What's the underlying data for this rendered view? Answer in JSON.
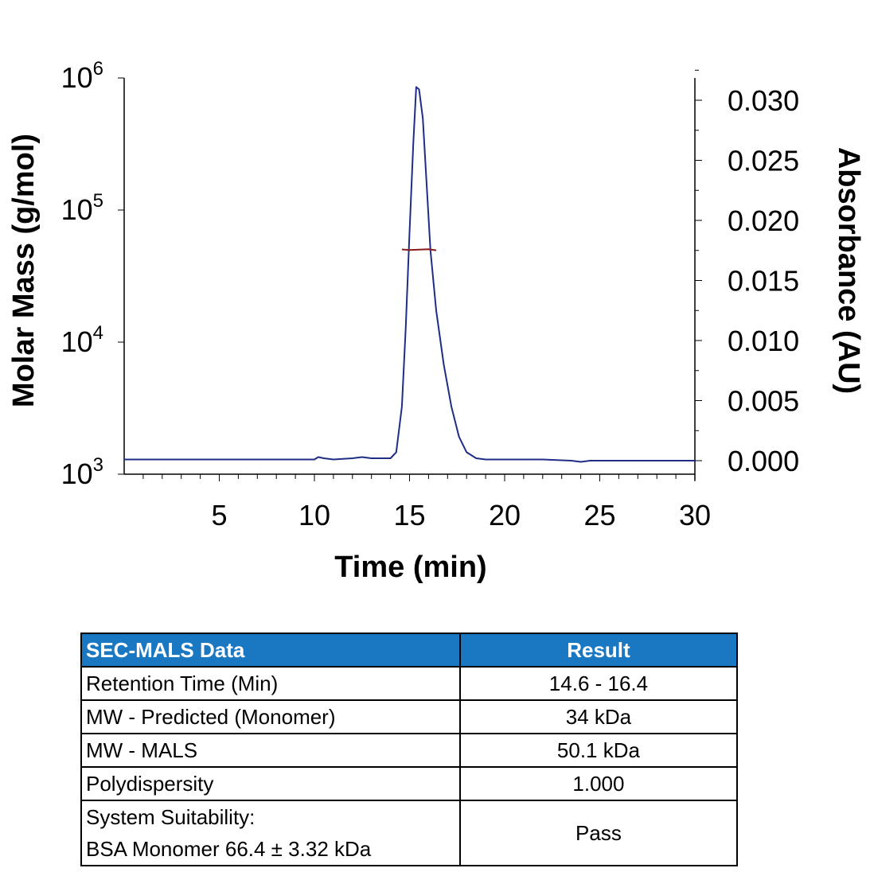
{
  "chart_data": {
    "type": "line",
    "xlabel": "Time (min)",
    "ylabel_left": "Molar Mass (g/mol)",
    "ylabel_right": "Absorbance (AU)",
    "xlim": [
      0,
      30
    ],
    "x_ticks": [
      "5",
      "10",
      "15",
      "20",
      "25",
      "30"
    ],
    "x_tick_values": [
      5,
      10,
      15,
      20,
      25,
      30
    ],
    "y_left_scale": "log",
    "y_left_lim": [
      1000,
      1000000
    ],
    "y_left_ticks": [
      {
        "base": "10",
        "exp": "3",
        "value": 1000
      },
      {
        "base": "10",
        "exp": "4",
        "value": 10000
      },
      {
        "base": "10",
        "exp": "5",
        "value": 100000
      },
      {
        "base": "10",
        "exp": "6",
        "value": 1000000
      }
    ],
    "y_right_lim": [
      0,
      0.033
    ],
    "y_right_ticks": [
      "0.000",
      "0.005",
      "0.010",
      "0.015",
      "0.020",
      "0.025",
      "0.030"
    ],
    "y_right_tick_values": [
      0,
      0.005,
      0.01,
      0.015,
      0.02,
      0.025,
      0.03
    ],
    "grid": false,
    "series": [
      {
        "axis": "right",
        "color": "#1f2d86",
        "x": [
          0,
          5,
          10,
          10.2,
          10.5,
          11,
          12,
          12.5,
          13,
          14,
          14.3,
          14.6,
          14.8,
          15.0,
          15.2,
          15.35,
          15.5,
          15.7,
          15.9,
          16.1,
          16.4,
          16.8,
          17.2,
          17.6,
          18.0,
          18.5,
          19,
          20,
          22,
          23.5,
          24,
          24.5,
          26,
          28,
          30
        ],
        "y": [
          0.0001,
          0.0001,
          0.0001,
          0.0003,
          0.0002,
          0.0001,
          0.0002,
          0.0003,
          0.0002,
          0.0002,
          0.0007,
          0.0045,
          0.011,
          0.019,
          0.0265,
          0.0311,
          0.0309,
          0.0285,
          0.023,
          0.0175,
          0.0125,
          0.008,
          0.0045,
          0.002,
          0.0007,
          0.0002,
          0.0001,
          0.0001,
          0.0001,
          0.0,
          -0.0001,
          0.0,
          0.0,
          0.0,
          0.0
        ]
      },
      {
        "axis": "left",
        "color": "#8b1a1a",
        "x": [
          14.6,
          15.0,
          15.5,
          16.0,
          16.4
        ],
        "y": [
          50300,
          49800,
          50100,
          50500,
          49600
        ]
      }
    ]
  },
  "table": {
    "headers": [
      "SEC-MALS Data",
      "Result"
    ],
    "rows": [
      {
        "label": "Retention Time (Min)",
        "value": "14.6 - 16.4"
      },
      {
        "label": "MW - Predicted (Monomer)",
        "value": "34 kDa"
      },
      {
        "label": "MW - MALS",
        "value": "50.1 kDa"
      },
      {
        "label": "Polydispersity",
        "value": "1.000"
      },
      {
        "label_line1": "System Suitability:",
        "label_line2": "BSA Monomer 66.4 ± 3.32 kDa",
        "value": "Pass"
      }
    ]
  }
}
